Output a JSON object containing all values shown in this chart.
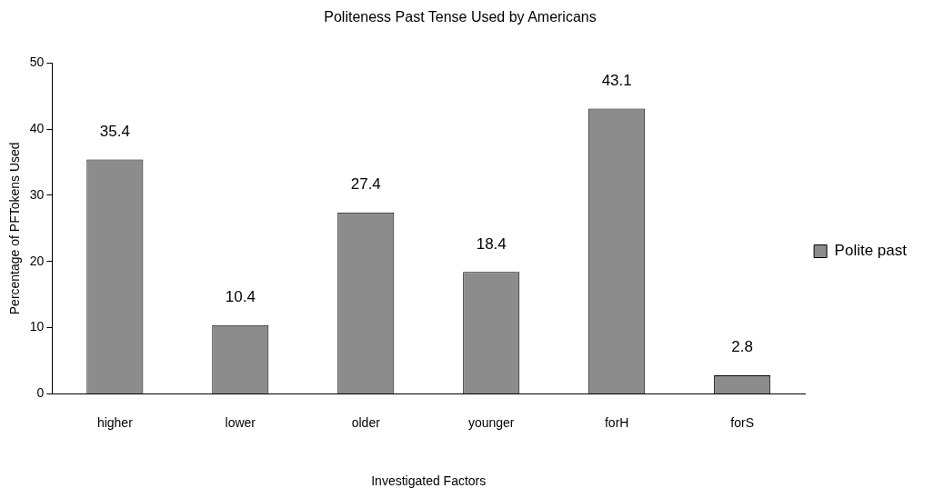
{
  "chart_data": {
    "type": "bar",
    "title": "Politeness Past Tense Used by Americans",
    "xlabel": "Investigated Factors",
    "ylabel": "Percentage of PFTokens Used",
    "categories": [
      "higher",
      "lower",
      "older",
      "younger",
      "forH",
      "forS"
    ],
    "series": [
      {
        "name": "Polite past",
        "color": "#8c8c8c",
        "values": [
          35.4,
          10.4,
          27.4,
          18.4,
          43.1,
          2.8
        ]
      }
    ],
    "ylim": [
      0,
      50
    ],
    "yticks": [
      0,
      10,
      20,
      30,
      40,
      50
    ],
    "grid": false,
    "legend": "right",
    "data_labels": true
  }
}
